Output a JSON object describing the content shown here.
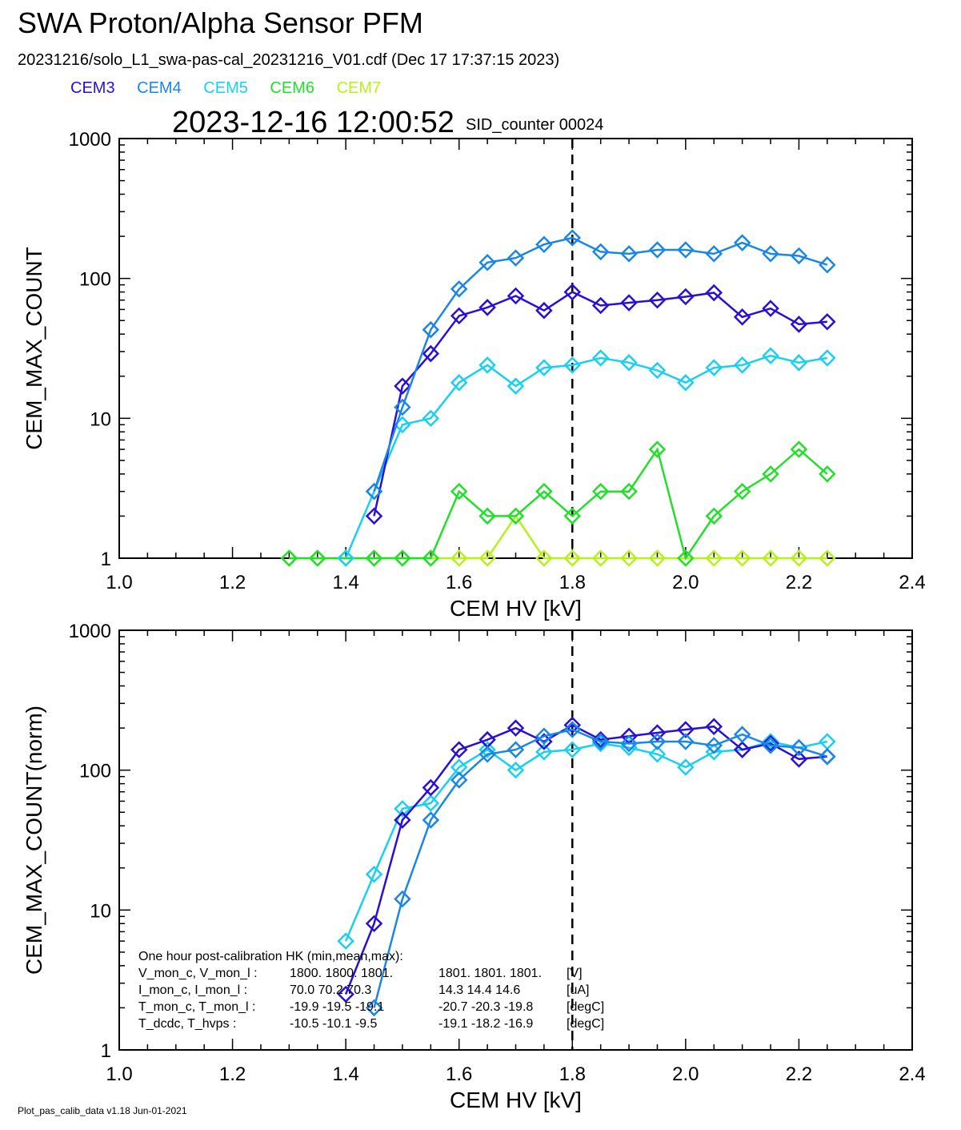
{
  "header": {
    "title": "SWA Proton/Alpha Sensor PFM",
    "subtitle": "20231216/solo_L1_swa-pas-cal_20231216_V01.cdf  (Dec 17 17:37:15 2023)",
    "timestamp": "2023-12-16 12:00:52",
    "sid_label": "SID_counter 00024"
  },
  "legend": [
    {
      "name": "CEM3",
      "color": "#2a0fd6"
    },
    {
      "name": "CEM4",
      "color": "#1a87e8"
    },
    {
      "name": "CEM5",
      "color": "#18d0f0"
    },
    {
      "name": "CEM6",
      "color": "#22e02a"
    },
    {
      "name": "CEM7",
      "color": "#b8f01e"
    }
  ],
  "footer": "Plot_pas_calib_data v1.18 Jun-01-2021",
  "hk_box": {
    "title": "One hour post-calibration HK (min,mean,max):",
    "rows": [
      {
        "label": "V_mon_c, V_mon_l :",
        "a": "1800.  1800.  1801.",
        "b": "1801.  1801.  1801.",
        "unit": "[V]"
      },
      {
        "label": "I_mon_c,  I_mon_l :",
        "a": "70.0   70.2   70.3",
        "b": "14.3   14.4   14.6",
        "unit": "[uA]"
      },
      {
        "label": "T_mon_c, T_mon_l :",
        "a": "-19.9  -19.5  -19.1",
        "b": "-20.7  -20.3  -19.8",
        "unit": "[degC]"
      },
      {
        "label": "T_dcdc,    T_hvps :",
        "a": "-10.5  -10.1   -9.5",
        "b": "-19.1  -18.2  -16.9",
        "unit": "[degC]"
      }
    ]
  },
  "chart_data": [
    {
      "type": "line",
      "xlabel": "CEM HV [kV]",
      "ylabel": "CEM_MAX_COUNT",
      "xlim": [
        1.0,
        2.4
      ],
      "ylim": [
        1,
        1000
      ],
      "yscale": "log",
      "xticks": [
        "1.0",
        "1.2",
        "1.4",
        "1.6",
        "1.8",
        "2.0",
        "2.2",
        "2.4"
      ],
      "yticks": [
        "1",
        "10",
        "100",
        "1000"
      ],
      "vline": 1.8,
      "marker": "diamond",
      "series": [
        {
          "name": "CEM7",
          "color": "#b8f01e",
          "x": [
            1.3,
            1.35,
            1.4,
            1.45,
            1.5,
            1.55,
            1.6,
            1.65,
            1.7,
            1.75,
            1.8,
            1.85,
            1.9,
            1.95,
            2.0,
            2.05,
            2.1,
            2.15,
            2.2,
            2.25
          ],
          "values": [
            1,
            1,
            1,
            1,
            1,
            1,
            1,
            1,
            2,
            1,
            1,
            1,
            1,
            1,
            1,
            1,
            1,
            1,
            1,
            1
          ]
        },
        {
          "name": "CEM6",
          "color": "#22e02a",
          "x": [
            1.3,
            1.35,
            1.4,
            1.45,
            1.5,
            1.55,
            1.6,
            1.65,
            1.7,
            1.75,
            1.8,
            1.85,
            1.9,
            1.95,
            2.0,
            2.05,
            2.1,
            2.15,
            2.2,
            2.25
          ],
          "values": [
            1,
            1,
            1,
            1,
            1,
            1,
            3,
            2,
            2,
            3,
            2,
            3,
            3,
            6,
            1,
            2,
            3,
            4,
            6,
            4
          ]
        },
        {
          "name": "CEM5",
          "color": "#18d0f0",
          "x": [
            1.4,
            1.45,
            1.5,
            1.55,
            1.6,
            1.65,
            1.7,
            1.75,
            1.8,
            1.85,
            1.9,
            1.95,
            2.0,
            2.05,
            2.1,
            2.15,
            2.2,
            2.25
          ],
          "values": [
            1,
            3,
            9,
            10,
            18,
            24,
            17,
            23,
            24,
            27,
            25,
            22,
            18,
            23,
            24,
            28,
            25,
            27
          ]
        },
        {
          "name": "CEM3",
          "color": "#2a0fd6",
          "x": [
            1.45,
            1.5,
            1.55,
            1.6,
            1.65,
            1.7,
            1.75,
            1.8,
            1.85,
            1.9,
            1.95,
            2.0,
            2.05,
            2.1,
            2.15,
            2.2,
            2.25
          ],
          "values": [
            2,
            17,
            29,
            54,
            62,
            75,
            59,
            80,
            64,
            67,
            70,
            74,
            79,
            53,
            61,
            47,
            49
          ]
        },
        {
          "name": "CEM4",
          "color": "#1a87e8",
          "x": [
            1.45,
            1.5,
            1.55,
            1.6,
            1.65,
            1.7,
            1.75,
            1.8,
            1.85,
            1.9,
            1.95,
            2.0,
            2.05,
            2.1,
            2.15,
            2.2,
            2.25
          ],
          "values": [
            3,
            12,
            43,
            84,
            130,
            140,
            175,
            195,
            155,
            150,
            160,
            160,
            150,
            180,
            150,
            145,
            125
          ]
        }
      ]
    },
    {
      "type": "line",
      "xlabel": "CEM HV [kV]",
      "ylabel": "CEM_MAX_COUNT(norm)",
      "xlim": [
        1.0,
        2.4
      ],
      "ylim": [
        1,
        1000
      ],
      "yscale": "log",
      "xticks": [
        "1.0",
        "1.2",
        "1.4",
        "1.6",
        "1.8",
        "2.0",
        "2.2",
        "2.4"
      ],
      "yticks": [
        "1",
        "10",
        "100",
        "1000"
      ],
      "vline": 1.8,
      "marker": "diamond",
      "series": [
        {
          "name": "CEM5",
          "color": "#18d0f0",
          "x": [
            1.4,
            1.45,
            1.5,
            1.55,
            1.6,
            1.65,
            1.7,
            1.75,
            1.8,
            1.85,
            1.9,
            1.95,
            2.0,
            2.05,
            2.1,
            2.15,
            2.2,
            2.25
          ],
          "values": [
            6,
            18,
            53,
            58,
            105,
            140,
            100,
            135,
            140,
            155,
            145,
            130,
            105,
            135,
            140,
            160,
            145,
            160
          ]
        },
        {
          "name": "CEM3",
          "color": "#2a0fd6",
          "x": [
            1.4,
            1.45,
            1.5,
            1.55,
            1.6,
            1.65,
            1.7,
            1.75,
            1.8,
            1.85,
            1.9,
            1.95,
            2.0,
            2.05,
            2.1,
            2.15,
            2.2,
            2.25
          ],
          "values": [
            2.5,
            8,
            44,
            75,
            140,
            165,
            200,
            160,
            210,
            165,
            175,
            185,
            195,
            205,
            140,
            155,
            120,
            125
          ]
        },
        {
          "name": "CEM4",
          "color": "#1a87e8",
          "x": [
            1.45,
            1.5,
            1.55,
            1.6,
            1.65,
            1.7,
            1.75,
            1.8,
            1.85,
            1.9,
            1.95,
            2.0,
            2.05,
            2.1,
            2.15,
            2.2,
            2.25
          ],
          "values": [
            2,
            12,
            44,
            85,
            130,
            140,
            175,
            195,
            160,
            155,
            160,
            160,
            150,
            180,
            150,
            145,
            125
          ]
        }
      ]
    }
  ]
}
